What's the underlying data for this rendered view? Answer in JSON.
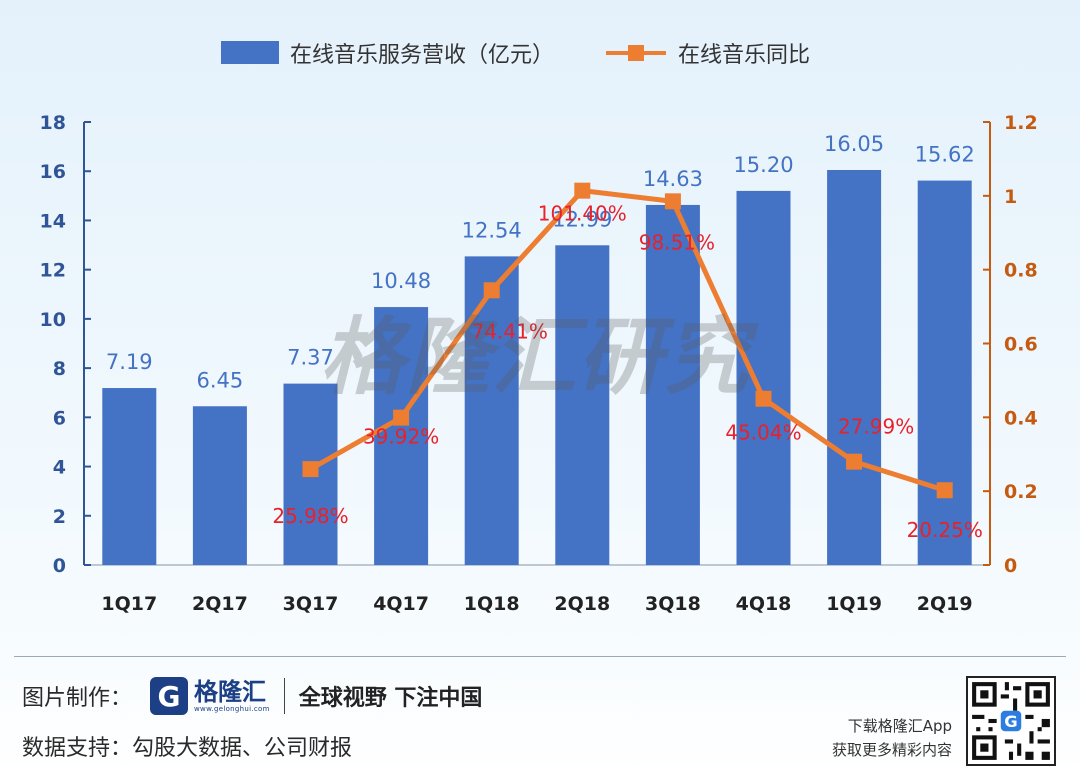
{
  "chart_data": {
    "type": "bar",
    "categories": [
      "1Q17",
      "2Q17",
      "3Q17",
      "4Q17",
      "1Q18",
      "2Q18",
      "3Q18",
      "4Q18",
      "1Q19",
      "2Q19"
    ],
    "series": [
      {
        "name": "在线音乐服务营收（亿元）",
        "type": "bar",
        "axis": "left",
        "values": [
          7.19,
          6.45,
          7.37,
          10.48,
          12.54,
          12.99,
          14.63,
          15.2,
          16.05,
          15.62
        ],
        "labels": [
          "7.19",
          "6.45",
          "7.37",
          "10.48",
          "12.54",
          "12.99",
          "14.63",
          "15.20",
          "16.05",
          "15.62"
        ]
      },
      {
        "name": "在线音乐同比",
        "type": "line",
        "axis": "right",
        "values": [
          null,
          null,
          0.2598,
          0.3992,
          0.7441,
          1.014,
          0.9851,
          0.4504,
          0.2799,
          0.2025
        ],
        "labels": [
          "",
          "",
          "25.98%",
          "39.92%",
          "74.41%",
          "101.40%",
          "98.51%",
          "45.04%",
          "27.99%",
          "20.25%"
        ]
      }
    ],
    "ylim": [
      0,
      18
    ],
    "y_ticks": [
      "0",
      "2",
      "4",
      "6",
      "8",
      "10",
      "12",
      "14",
      "16",
      "18"
    ],
    "y2lim": [
      0,
      1.2
    ],
    "y2_ticks": [
      "0",
      "0.2",
      "0.4",
      "0.6",
      "0.8",
      "1",
      "1.2"
    ],
    "grid": false,
    "legend": "top",
    "colors": {
      "bar": "#4472c4",
      "line": "#ed7d31",
      "bar_label": "#4472c4",
      "line_label": "#e8212b",
      "left_axis": "#2f5597",
      "right_axis": "#c55a11"
    }
  },
  "watermark": "格隆汇研究",
  "footer": {
    "made_by_label": "图片制作：",
    "logo_mark": "G",
    "logo_name": "格隆汇",
    "logo_url": "www.gelonghui.com",
    "slogan": "全球视野 下注中国",
    "data_label": "数据支持：",
    "data_source": "勾股大数据、公司财报",
    "download_line1": "下载格隆汇App",
    "download_line2": "获取更多精彩内容"
  }
}
